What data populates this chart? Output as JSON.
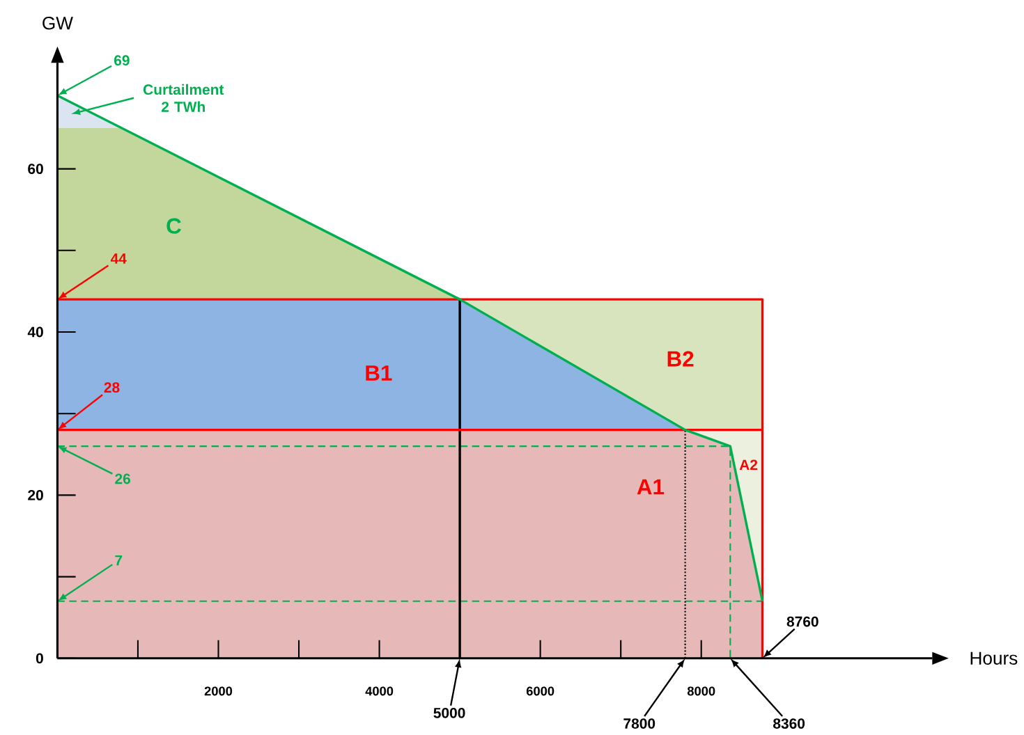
{
  "chart_data": {
    "type": "area",
    "xlabel": "Hours",
    "ylabel": "GW",
    "xlim": [
      0,
      10870
    ],
    "ylim": [
      0,
      73
    ],
    "xticks": [
      {
        "value": 1000,
        "label": null
      },
      2000,
      {
        "value": 3000,
        "label": null
      },
      4000,
      6000,
      {
        "value": 7000,
        "label": null
      },
      8000
    ],
    "yticks": [
      0,
      {
        "value": 10,
        "label": null
      },
      20,
      {
        "value": 30,
        "label": null
      },
      40,
      {
        "value": 50,
        "label": null
      },
      60
    ],
    "grid": false,
    "series": [
      {
        "color": "#dbe5f1",
        "x": [
          0,
          800
        ],
        "values": [
          69,
          65
        ]
      },
      {
        "color": "#c3d69b",
        "x": [
          0,
          800,
          5000
        ],
        "values": [
          65,
          65,
          44
        ]
      },
      {
        "color": "#d7e4bd",
        "x": [
          5000,
          7800,
          8760
        ],
        "values": [
          44,
          44,
          44
        ]
      },
      {
        "color": "#8eb4e3",
        "x": [
          0,
          5000,
          7800
        ],
        "values": [
          44,
          44,
          28
        ]
      },
      {
        "color": "#ebf1de",
        "x": [
          7800,
          8360,
          8760
        ],
        "values": [
          28,
          28,
          28
        ]
      },
      {
        "color": "#e6b9b8",
        "x": [
          0,
          7800,
          8360,
          8760
        ],
        "values": [
          28,
          28,
          26,
          7
        ]
      },
      {
        "type": "line",
        "color": "#00b050",
        "line_style": "dashed",
        "x": [
          0,
          8360,
          8360
        ],
        "values": [
          26,
          26,
          0
        ]
      },
      {
        "type": "line",
        "color": "#00b050",
        "line_style": "dashed",
        "x": [
          0,
          8760
        ],
        "values": [
          7,
          7
        ]
      },
      {
        "type": "line",
        "color": "#000000",
        "line_style": "dotted",
        "x": [
          7800,
          7800
        ],
        "values": [
          0,
          28
        ]
      },
      {
        "type": "line",
        "color": "#000000",
        "line_style": "solid",
        "x": [
          5000,
          5000
        ],
        "values": [
          0,
          44
        ]
      },
      {
        "type": "line",
        "color": "#ff0000",
        "line_style": "solid",
        "x": [
          0,
          8760
        ],
        "values": [
          28,
          28
        ]
      },
      {
        "type": "line",
        "color": "#ff0000",
        "line_style": "solid",
        "x": [
          0,
          8760,
          8760
        ],
        "values": [
          44,
          44,
          0
        ]
      },
      {
        "type": "line",
        "color": "#00b050",
        "line_style": "solid",
        "x": [
          0,
          5000,
          7800,
          8360,
          8760
        ],
        "values": [
          69,
          44,
          28,
          26,
          7
        ]
      }
    ],
    "annotations": [
      {
        "text": "69",
        "x": 0,
        "y": 69
      },
      "Curtailment 2 TWh",
      "C",
      {
        "text": "44",
        "x": 0,
        "y": 44
      },
      {
        "text": "28",
        "x": 0,
        "y": 28
      },
      "B1",
      "B2",
      {
        "text": "26",
        "x": 0,
        "y": 26
      },
      "A1",
      "A2",
      {
        "text": "7",
        "x": 0,
        "y": 7
      },
      {
        "text": "5000",
        "x": 5000,
        "y": 0
      },
      {
        "text": "7800",
        "x": 7800,
        "y": 0
      },
      {
        "text": "8360",
        "x": 8360,
        "y": 0
      },
      {
        "text": "8760",
        "x": 8760,
        "y": 0
      }
    ]
  }
}
